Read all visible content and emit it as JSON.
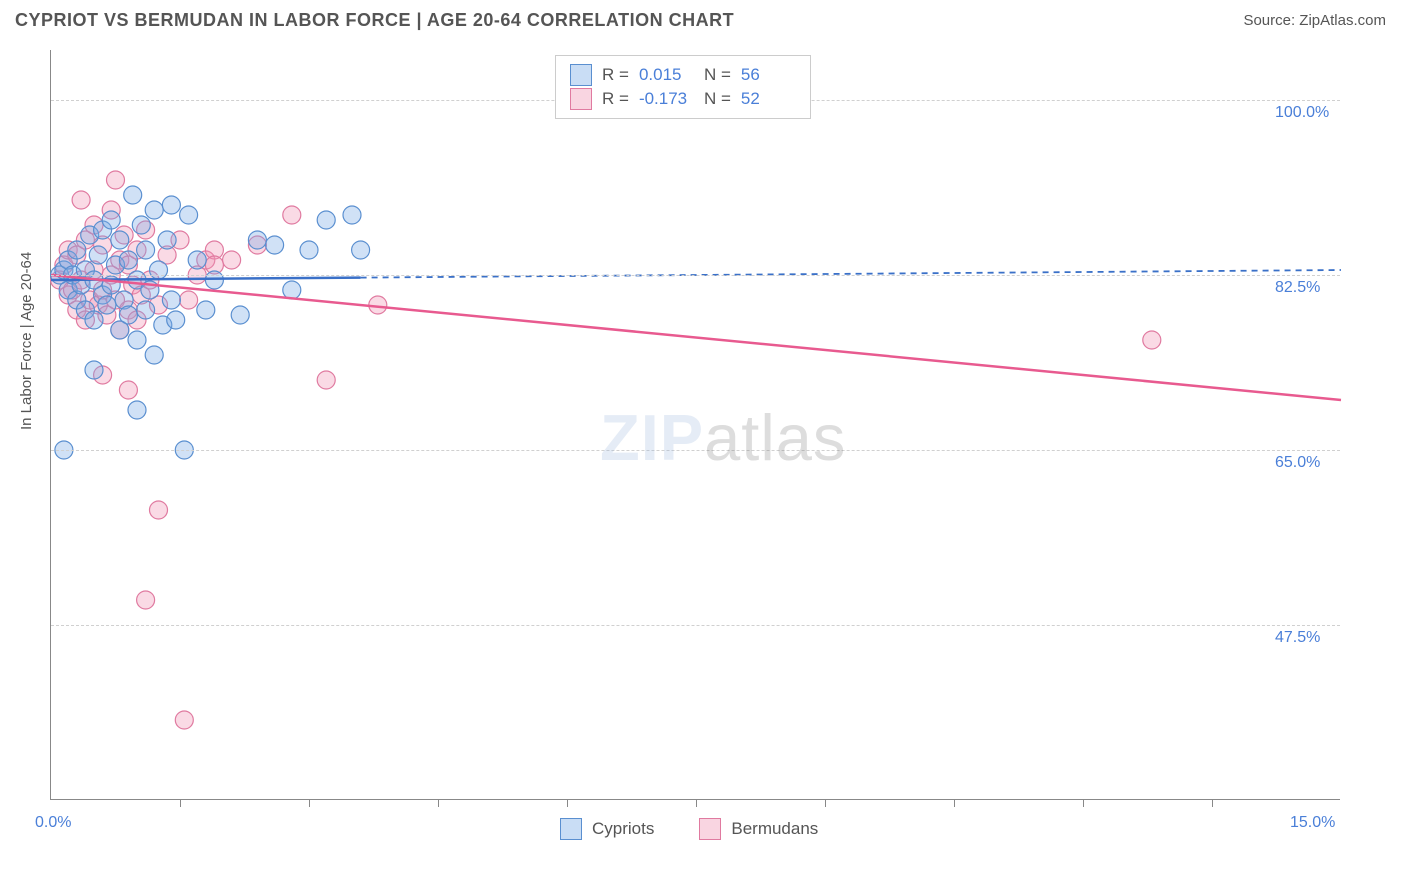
{
  "title": "CYPRIOT VS BERMUDAN IN LABOR FORCE | AGE 20-64 CORRELATION CHART",
  "source": "Source: ZipAtlas.com",
  "watermark_bold": "ZIP",
  "watermark_thin": "atlas",
  "chart": {
    "type": "scatter-with-trend",
    "xlim": [
      0.0,
      15.0
    ],
    "ylim": [
      30.0,
      105.0
    ],
    "x_start_label": "0.0%",
    "x_end_label": "15.0%",
    "ylabel": "In Labor Force | Age 20-64",
    "y_gridlines": [
      47.5,
      65.0,
      82.5,
      100.0
    ],
    "y_grid_labels": [
      "47.5%",
      "65.0%",
      "82.5%",
      "100.0%"
    ],
    "x_ticks": [
      1.5,
      3.0,
      4.5,
      6.0,
      7.5,
      9.0,
      10.5,
      12.0,
      13.5
    ],
    "background_color": "#ffffff",
    "grid_color": "#d0d0d0",
    "axis_color": "#888888",
    "series": [
      {
        "name": "Cypriots",
        "color_fill": "rgba(120,170,230,0.35)",
        "color_stroke": "#5a8fd0",
        "trend_color": "#3a70c8",
        "trend_dash_color": "#3a70c8",
        "marker_radius": 9,
        "r_value": "0.015",
        "n_value": "56",
        "trend": {
          "x1": 0.0,
          "y1": 82.0,
          "x2": 15.0,
          "y2": 83.0
        },
        "trend_solid_until_x": 3.6,
        "points": [
          [
            0.1,
            82.5
          ],
          [
            0.15,
            83
          ],
          [
            0.2,
            81
          ],
          [
            0.2,
            84
          ],
          [
            0.25,
            82.5
          ],
          [
            0.3,
            80
          ],
          [
            0.3,
            85
          ],
          [
            0.35,
            81.5
          ],
          [
            0.4,
            79
          ],
          [
            0.4,
            83
          ],
          [
            0.45,
            86.5
          ],
          [
            0.5,
            78
          ],
          [
            0.5,
            82
          ],
          [
            0.55,
            84.5
          ],
          [
            0.6,
            80.5
          ],
          [
            0.6,
            87
          ],
          [
            0.65,
            79.5
          ],
          [
            0.7,
            81.5
          ],
          [
            0.7,
            88
          ],
          [
            0.75,
            83.5
          ],
          [
            0.8,
            77
          ],
          [
            0.8,
            86
          ],
          [
            0.85,
            80
          ],
          [
            0.9,
            78.5
          ],
          [
            0.9,
            84
          ],
          [
            0.95,
            90.5
          ],
          [
            1.0,
            76
          ],
          [
            1.0,
            82
          ],
          [
            1.05,
            87.5
          ],
          [
            1.1,
            79
          ],
          [
            1.1,
            85
          ],
          [
            1.15,
            81
          ],
          [
            1.2,
            74.5
          ],
          [
            1.2,
            89
          ],
          [
            1.25,
            83
          ],
          [
            1.3,
            77.5
          ],
          [
            1.35,
            86
          ],
          [
            1.4,
            80
          ],
          [
            1.45,
            78
          ],
          [
            0.15,
            65
          ],
          [
            1.6,
            88.5
          ],
          [
            1.7,
            84
          ],
          [
            1.8,
            79
          ],
          [
            1.9,
            82
          ],
          [
            0.5,
            73
          ],
          [
            1.4,
            89.5
          ],
          [
            2.2,
            78.5
          ],
          [
            2.4,
            86
          ],
          [
            2.6,
            85.5
          ],
          [
            2.8,
            81
          ],
          [
            3.0,
            85
          ],
          [
            3.2,
            88
          ],
          [
            1.0,
            69
          ],
          [
            1.55,
            65
          ],
          [
            3.6,
            85
          ],
          [
            3.5,
            88.5
          ]
        ]
      },
      {
        "name": "Bermudans",
        "color_fill": "rgba(240,150,180,0.35)",
        "color_stroke": "#e07aa0",
        "trend_color": "#e85a8f",
        "marker_radius": 9,
        "r_value": "-0.173",
        "n_value": "52",
        "trend": {
          "x1": 0.0,
          "y1": 82.5,
          "x2": 15.0,
          "y2": 70.0
        },
        "trend_solid_until_x": 15.0,
        "points": [
          [
            0.1,
            82
          ],
          [
            0.15,
            83.5
          ],
          [
            0.2,
            80.5
          ],
          [
            0.2,
            85
          ],
          [
            0.25,
            81
          ],
          [
            0.3,
            79
          ],
          [
            0.3,
            84.5
          ],
          [
            0.35,
            82
          ],
          [
            0.4,
            78
          ],
          [
            0.4,
            86
          ],
          [
            0.45,
            80
          ],
          [
            0.5,
            83
          ],
          [
            0.5,
            87.5
          ],
          [
            0.55,
            79.5
          ],
          [
            0.6,
            81
          ],
          [
            0.6,
            85.5
          ],
          [
            0.65,
            78.5
          ],
          [
            0.7,
            82.5
          ],
          [
            0.7,
            89
          ],
          [
            0.75,
            80
          ],
          [
            0.8,
            84
          ],
          [
            0.8,
            77
          ],
          [
            0.85,
            86.5
          ],
          [
            0.9,
            79
          ],
          [
            0.9,
            83.5
          ],
          [
            0.95,
            81.5
          ],
          [
            1.0,
            78
          ],
          [
            1.0,
            85
          ],
          [
            1.05,
            80.5
          ],
          [
            1.1,
            87
          ],
          [
            1.15,
            82
          ],
          [
            0.75,
            92
          ],
          [
            1.25,
            79.5
          ],
          [
            0.6,
            72.5
          ],
          [
            1.35,
            84.5
          ],
          [
            0.9,
            71
          ],
          [
            1.5,
            86
          ],
          [
            1.6,
            80
          ],
          [
            1.7,
            82.5
          ],
          [
            1.8,
            84
          ],
          [
            1.9,
            85
          ],
          [
            2.1,
            84
          ],
          [
            1.25,
            59
          ],
          [
            2.8,
            88.5
          ],
          [
            1.55,
            38
          ],
          [
            3.2,
            72
          ],
          [
            3.8,
            79.5
          ],
          [
            1.1,
            50
          ],
          [
            1.9,
            83.5
          ],
          [
            2.4,
            85.5
          ],
          [
            12.8,
            76
          ],
          [
            0.35,
            90
          ]
        ]
      }
    ]
  },
  "legend_top": {
    "r_label": "R =",
    "n_label": "N ="
  },
  "legend_bottom": {
    "label1": "Cypriots",
    "label2": "Bermudans"
  }
}
